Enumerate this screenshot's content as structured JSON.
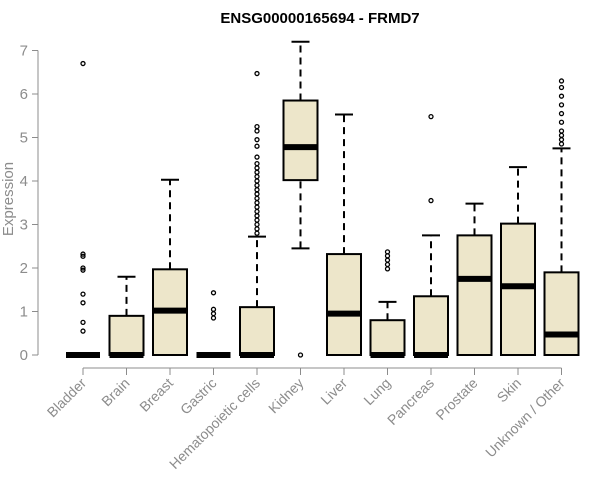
{
  "chart_data": {
    "type": "box",
    "title": "ENSG00000165694 - FRMD7",
    "xlabel": "",
    "ylabel": "Expression",
    "ylim": [
      0,
      7.2
    ],
    "yticks": [
      0,
      1,
      2,
      3,
      4,
      5,
      6,
      7
    ],
    "grid": false,
    "colors": {
      "box_fill": "#ede6ca",
      "axis": "#8c8c8c",
      "text": "#8c8c8c"
    },
    "categories": [
      "Bladder",
      "Brain",
      "Breast",
      "Gastric",
      "Hematopoietic cells",
      "Kidney",
      "Liver",
      "Lung",
      "Pancreas",
      "Prostate",
      "Skin",
      "Unknown / Other"
    ],
    "boxes": [
      {
        "category": "Bladder",
        "min": 0,
        "q1": 0,
        "median": 0,
        "q3": 0,
        "max": 0,
        "outliers": [
          6.7,
          2.32,
          2.27,
          2.0,
          1.95,
          1.4,
          1.2,
          0.75,
          0.55
        ]
      },
      {
        "category": "Brain",
        "min": 0,
        "q1": 0,
        "median": 0,
        "q3": 0.9,
        "max": 1.8,
        "outliers": []
      },
      {
        "category": "Breast",
        "min": 0,
        "q1": 0,
        "median": 1.02,
        "q3": 1.97,
        "max": 4.03,
        "outliers": []
      },
      {
        "category": "Gastric",
        "min": 0,
        "q1": 0,
        "median": 0,
        "q3": 0,
        "max": 0,
        "outliers": [
          1.43,
          1.05,
          0.95,
          0.85
        ]
      },
      {
        "category": "Hematopoietic cells",
        "min": 0,
        "q1": 0,
        "median": 0,
        "q3": 1.1,
        "max": 2.72,
        "outliers": [
          6.47,
          5.25,
          5.15,
          4.95,
          4.8,
          4.55,
          4.4,
          4.3,
          4.2,
          4.1,
          4.0,
          3.9,
          3.8,
          3.7,
          3.6,
          3.5,
          3.4,
          3.3,
          3.2,
          3.1,
          3.0,
          2.9,
          2.8
        ]
      },
      {
        "category": "Kidney",
        "min": 2.45,
        "q1": 4.02,
        "median": 4.78,
        "q3": 5.85,
        "max": 7.2,
        "outliers": [
          0
        ]
      },
      {
        "category": "Liver",
        "min": 0,
        "q1": 0,
        "median": 0.95,
        "q3": 2.32,
        "max": 5.53,
        "outliers": []
      },
      {
        "category": "Lung",
        "min": 0,
        "q1": 0,
        "median": 0,
        "q3": 0.8,
        "max": 1.22,
        "outliers": [
          2.37,
          2.28,
          2.18,
          2.08,
          1.98
        ]
      },
      {
        "category": "Pancreas",
        "min": 0,
        "q1": 0,
        "median": 0,
        "q3": 1.35,
        "max": 2.75,
        "outliers": [
          5.48,
          3.55
        ]
      },
      {
        "category": "Prostate",
        "min": 0,
        "q1": 0,
        "median": 1.75,
        "q3": 2.75,
        "max": 3.48,
        "outliers": []
      },
      {
        "category": "Skin",
        "min": 0,
        "q1": 0,
        "median": 1.58,
        "q3": 3.02,
        "max": 4.32,
        "outliers": []
      },
      {
        "category": "Unknown / Other",
        "min": 0,
        "q1": 0,
        "median": 0.47,
        "q3": 1.9,
        "max": 4.75,
        "outliers": [
          6.3,
          6.15,
          5.95,
          5.75,
          5.55,
          5.35,
          5.15,
          5.05,
          4.95,
          4.85
        ]
      }
    ]
  }
}
